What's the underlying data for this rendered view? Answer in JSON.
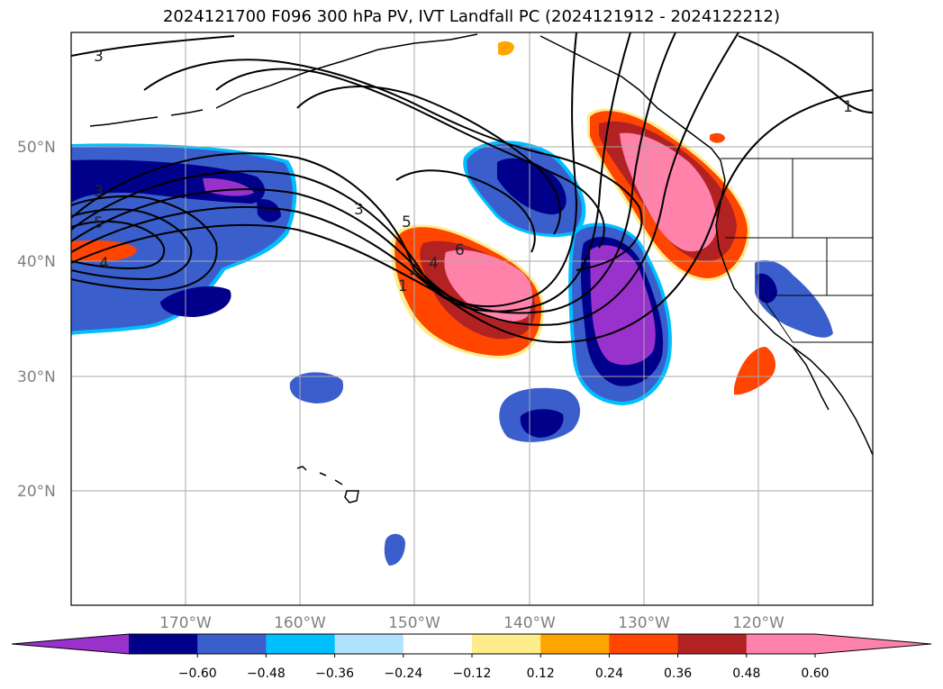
{
  "title": "2024121700 F096 300 hPa PV, IVT Landfall PC (2024121912 - 2024122212)",
  "map": {
    "lat_labels": [
      "50°N",
      "40°N",
      "30°N",
      "20°N"
    ],
    "lon_labels": [
      "170°W",
      "160°W",
      "150°W",
      "140°W",
      "130°W",
      "120°W"
    ],
    "contour_labels": [
      "3",
      "3",
      "5",
      "4",
      "3",
      "5",
      "6",
      "4",
      "2",
      "1",
      "1"
    ]
  },
  "colorbar": {
    "colors": [
      "#9932CC",
      "#00008B",
      "#3A5FCD",
      "#00BFFF",
      "#B0E2FF",
      "#FFFFFF",
      "#FFEC8B",
      "#FFA500",
      "#FF4500",
      "#B22222",
      "#FF82AB",
      "#FF82AB"
    ],
    "ticks": [
      "−0.60",
      "−0.48",
      "−0.36",
      "−0.24",
      "−0.12",
      "0.12",
      "0.24",
      "0.36",
      "0.48",
      "0.60"
    ]
  }
}
